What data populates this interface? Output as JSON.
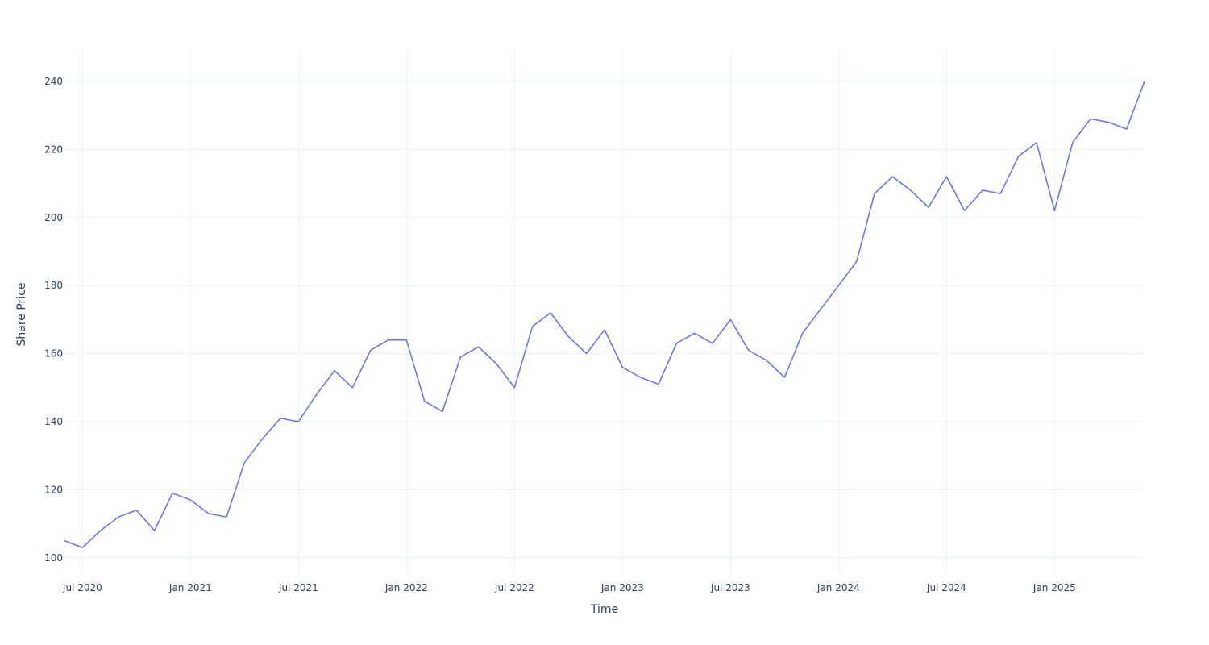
{
  "chart_data": {
    "type": "line",
    "x_label": "Time",
    "y_label": "Share Price",
    "x": [
      "2020-06",
      "2020-07",
      "2020-08",
      "2020-09",
      "2020-10",
      "2020-11",
      "2020-12",
      "2021-01",
      "2021-02",
      "2021-03",
      "2021-04",
      "2021-05",
      "2021-06",
      "2021-07",
      "2021-08",
      "2021-09",
      "2021-10",
      "2021-11",
      "2021-12",
      "2022-01",
      "2022-02",
      "2022-03",
      "2022-04",
      "2022-05",
      "2022-06",
      "2022-07",
      "2022-08",
      "2022-09",
      "2022-10",
      "2022-11",
      "2022-12",
      "2023-01",
      "2023-02",
      "2023-03",
      "2023-04",
      "2023-05",
      "2023-06",
      "2023-07",
      "2023-08",
      "2023-09",
      "2023-10",
      "2023-11",
      "2023-12",
      "2024-01",
      "2024-02",
      "2024-03",
      "2024-04",
      "2024-05",
      "2024-06",
      "2024-07",
      "2024-08",
      "2024-09",
      "2024-10",
      "2024-11",
      "2024-12",
      "2025-01",
      "2025-02",
      "2025-03",
      "2025-04",
      "2025-05",
      "2025-06"
    ],
    "series": [
      {
        "color": "#636efa",
        "values": [
          105,
          103,
          108,
          112,
          114,
          108,
          119,
          117,
          113,
          112,
          128,
          135,
          141,
          140,
          148,
          155,
          150,
          161,
          164,
          164,
          146,
          143,
          159,
          162,
          157,
          150,
          168,
          172,
          165,
          160,
          167,
          156,
          153,
          151,
          163,
          166,
          163,
          170,
          161,
          158,
          153,
          166,
          173,
          180,
          187,
          207,
          212,
          208,
          203,
          212,
          202,
          208,
          207,
          218,
          222,
          202,
          222,
          229,
          228,
          226,
          240
        ]
      }
    ],
    "xlim": [
      "2020-06",
      "2025-06"
    ],
    "xticks": [
      {
        "value": "2020-07",
        "label": "Jul 2020"
      },
      {
        "value": "2021-01",
        "label": "Jan 2021"
      },
      {
        "value": "2021-07",
        "label": "Jul 2021"
      },
      {
        "value": "2022-01",
        "label": "Jan 2022"
      },
      {
        "value": "2022-07",
        "label": "Jul 2022"
      },
      {
        "value": "2023-01",
        "label": "Jan 2023"
      },
      {
        "value": "2023-07",
        "label": "Jul 2023"
      },
      {
        "value": "2024-01",
        "label": "Jan 2024"
      },
      {
        "value": "2024-07",
        "label": "Jul 2024"
      },
      {
        "value": "2025-01",
        "label": "Jan 2025"
      }
    ],
    "ylim": [
      95.7,
      249.7
    ],
    "yticks": [
      100,
      120,
      140,
      160,
      180,
      200,
      220,
      240
    ],
    "grid": true
  }
}
